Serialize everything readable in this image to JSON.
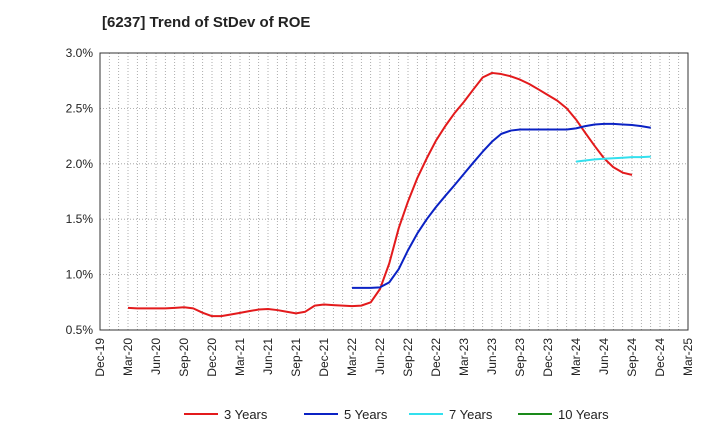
{
  "title": "[6237]  Trend of StDev of ROE",
  "chart_data": {
    "type": "line",
    "title": "[6237]  Trend of StDev of ROE",
    "xlabel": "",
    "ylabel": "",
    "x_categories": [
      "Dec-19",
      "Mar-20",
      "Jun-20",
      "Sep-20",
      "Dec-20",
      "Mar-21",
      "Jun-21",
      "Sep-21",
      "Dec-21",
      "Mar-22",
      "Jun-22",
      "Sep-22",
      "Dec-22",
      "Mar-23",
      "Jun-23",
      "Sep-23",
      "Dec-23",
      "Mar-24",
      "Jun-24",
      "Sep-24",
      "Dec-24",
      "Mar-25"
    ],
    "y_ticks": [
      "0.5%",
      "1.0%",
      "1.5%",
      "2.0%",
      "2.5%",
      "3.0%"
    ],
    "ylim": [
      0.5,
      3.0
    ],
    "grid": true,
    "legend_position": "bottom",
    "series": [
      {
        "name": "3 Years",
        "color": "#e31a1c",
        "points": [
          [
            1,
            0.7
          ],
          [
            1.33,
            0.695
          ],
          [
            1.67,
            0.695
          ],
          [
            2,
            0.695
          ],
          [
            2.33,
            0.695
          ],
          [
            2.67,
            0.7
          ],
          [
            3,
            0.705
          ],
          [
            3.33,
            0.695
          ],
          [
            3.67,
            0.655
          ],
          [
            4,
            0.625
          ],
          [
            4.33,
            0.625
          ],
          [
            4.67,
            0.64
          ],
          [
            5,
            0.655
          ],
          [
            5.33,
            0.67
          ],
          [
            5.67,
            0.685
          ],
          [
            6,
            0.69
          ],
          [
            6.33,
            0.68
          ],
          [
            6.67,
            0.665
          ],
          [
            7,
            0.65
          ],
          [
            7.33,
            0.665
          ],
          [
            7.67,
            0.72
          ],
          [
            8,
            0.73
          ],
          [
            8.33,
            0.725
          ],
          [
            8.67,
            0.72
          ],
          [
            9,
            0.715
          ],
          [
            9.33,
            0.72
          ],
          [
            9.67,
            0.75
          ],
          [
            10,
            0.87
          ],
          [
            10.33,
            1.1
          ],
          [
            10.67,
            1.42
          ],
          [
            11,
            1.66
          ],
          [
            11.33,
            1.87
          ],
          [
            11.67,
            2.05
          ],
          [
            12,
            2.21
          ],
          [
            12.33,
            2.34
          ],
          [
            12.67,
            2.46
          ],
          [
            13,
            2.56
          ],
          [
            13.33,
            2.67
          ],
          [
            13.67,
            2.78
          ],
          [
            14,
            2.82
          ],
          [
            14.33,
            2.81
          ],
          [
            14.67,
            2.79
          ],
          [
            15,
            2.76
          ],
          [
            15.33,
            2.72
          ],
          [
            15.67,
            2.67
          ],
          [
            16,
            2.62
          ],
          [
            16.33,
            2.57
          ],
          [
            16.67,
            2.5
          ],
          [
            17,
            2.4
          ],
          [
            17.33,
            2.28
          ],
          [
            17.67,
            2.16
          ],
          [
            18,
            2.05
          ],
          [
            18.33,
            1.97
          ],
          [
            18.67,
            1.92
          ],
          [
            19,
            1.9
          ]
        ]
      },
      {
        "name": "5 Years",
        "color": "#0b22c4",
        "points": [
          [
            9,
            0.88
          ],
          [
            9.33,
            0.88
          ],
          [
            9.67,
            0.88
          ],
          [
            10,
            0.885
          ],
          [
            10.33,
            0.93
          ],
          [
            10.67,
            1.05
          ],
          [
            11,
            1.22
          ],
          [
            11.33,
            1.37
          ],
          [
            11.67,
            1.5
          ],
          [
            12,
            1.61
          ],
          [
            12.33,
            1.71
          ],
          [
            12.67,
            1.81
          ],
          [
            13,
            1.91
          ],
          [
            13.33,
            2.01
          ],
          [
            13.67,
            2.11
          ],
          [
            14,
            2.2
          ],
          [
            14.33,
            2.27
          ],
          [
            14.67,
            2.3
          ],
          [
            15,
            2.31
          ],
          [
            15.33,
            2.31
          ],
          [
            15.67,
            2.31
          ],
          [
            16,
            2.31
          ],
          [
            16.33,
            2.31
          ],
          [
            16.67,
            2.31
          ],
          [
            17,
            2.32
          ],
          [
            17.33,
            2.34
          ],
          [
            17.67,
            2.355
          ],
          [
            18,
            2.36
          ],
          [
            18.33,
            2.36
          ],
          [
            18.67,
            2.355
          ],
          [
            19,
            2.35
          ],
          [
            19.33,
            2.34
          ],
          [
            19.67,
            2.325
          ]
        ]
      },
      {
        "name": "7 Years",
        "color": "#33e0ee",
        "points": [
          [
            17,
            2.02
          ],
          [
            17.33,
            2.03
          ],
          [
            17.67,
            2.04
          ],
          [
            18,
            2.045
          ],
          [
            18.33,
            2.05
          ],
          [
            18.67,
            2.055
          ],
          [
            19,
            2.06
          ],
          [
            19.33,
            2.06
          ],
          [
            19.67,
            2.065
          ]
        ]
      },
      {
        "name": "10 Years",
        "color": "#1a8a1a",
        "points": []
      }
    ]
  },
  "legend": [
    {
      "label": "3 Years",
      "color": "#e31a1c"
    },
    {
      "label": "5 Years",
      "color": "#0b22c4"
    },
    {
      "label": "7 Years",
      "color": "#33e0ee"
    },
    {
      "label": "10 Years",
      "color": "#1a8a1a"
    }
  ]
}
